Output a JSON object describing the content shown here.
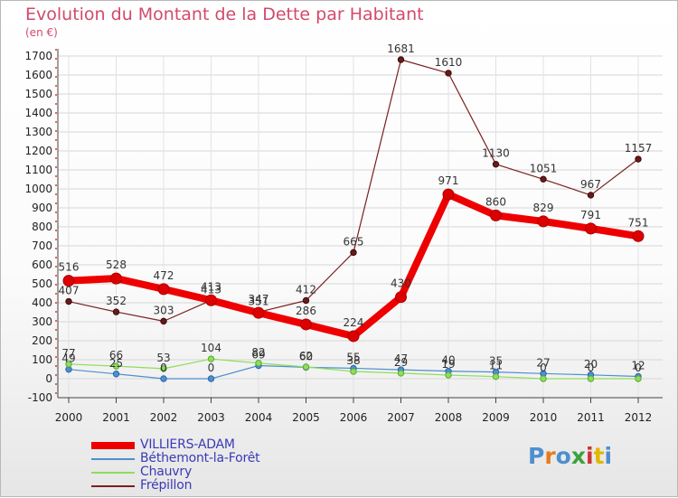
{
  "chart_data": {
    "type": "line",
    "title": "Evolution du Montant de la Dette par Habitant",
    "unit": "(en €)",
    "x": [
      "2000",
      "2001",
      "2002",
      "2003",
      "2004",
      "2005",
      "2006",
      "2007",
      "2008",
      "2009",
      "2010",
      "2011",
      "2012"
    ],
    "ylim": [
      -100,
      1700
    ],
    "yticks": [
      -100,
      0,
      100,
      200,
      300,
      400,
      500,
      600,
      700,
      800,
      900,
      1000,
      1100,
      1200,
      1300,
      1400,
      1500,
      1600,
      1700
    ],
    "grid": true,
    "legend_position": "bottom-left",
    "series": [
      {
        "name": "VILLIERS-ADAM",
        "color": "#ee0000",
        "values": [
          516,
          528,
          472,
          413,
          347,
          286,
          224,
          430,
          971,
          860,
          829,
          791,
          751
        ]
      },
      {
        "name": "Béthemont-la-Forêt",
        "color": "#4d8fcf",
        "values": [
          49,
          25,
          0,
          0,
          69,
          60,
          55,
          47,
          40,
          35,
          27,
          20,
          12
        ]
      },
      {
        "name": "Chauvry",
        "color": "#8ede5a",
        "values": [
          77,
          66,
          53,
          104,
          82,
          62,
          38,
          29,
          19,
          11,
          0,
          0,
          0
        ]
      },
      {
        "name": "Frépillon",
        "color": "#7a2020",
        "values": [
          407,
          352,
          303,
          413,
          351,
          412,
          665,
          1681,
          1610,
          1130,
          1051,
          967,
          1157
        ]
      }
    ]
  },
  "logo": {
    "text": "Proxiti",
    "colors": [
      "#4d8fcf",
      "#e77a1a",
      "#4d8fcf",
      "#3ca23c",
      "#cc3333",
      "#e0b800",
      "#4d8fcf"
    ]
  }
}
